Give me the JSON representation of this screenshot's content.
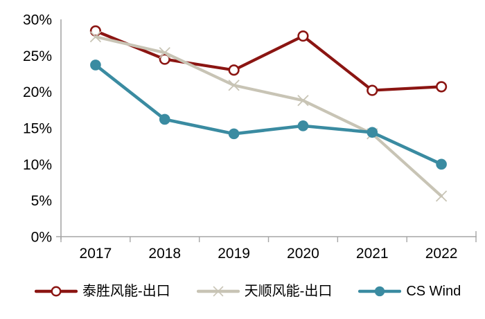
{
  "chart_data": {
    "type": "line",
    "x": [
      "2017",
      "2018",
      "2019",
      "2020",
      "2021",
      "2022"
    ],
    "series": [
      {
        "name": "泰胜风能-出口",
        "color": "#8B1512",
        "marker": "open-circle",
        "values": [
          28.4,
          24.5,
          23.0,
          27.7,
          20.2,
          20.7
        ]
      },
      {
        "name": "天顺风能-出口",
        "color": "#C8C4B5",
        "marker": "x",
        "values": [
          27.6,
          25.4,
          20.9,
          18.8,
          14.2,
          5.6
        ]
      },
      {
        "name": "CS Wind",
        "color": "#3A8BA1",
        "marker": "filled-circle",
        "values": [
          23.7,
          16.2,
          14.2,
          15.3,
          14.4,
          10.0
        ]
      }
    ],
    "title": "",
    "xlabel": "",
    "ylabel": "",
    "ylim": [
      0,
      30
    ],
    "ytick_step": 5,
    "ytick_labels": [
      "0%",
      "5%",
      "10%",
      "15%",
      "20%",
      "25%",
      "30%"
    ],
    "grid": false,
    "legend_position": "bottom",
    "axis_color": "#A6A6A6",
    "text_color": "#000000"
  }
}
